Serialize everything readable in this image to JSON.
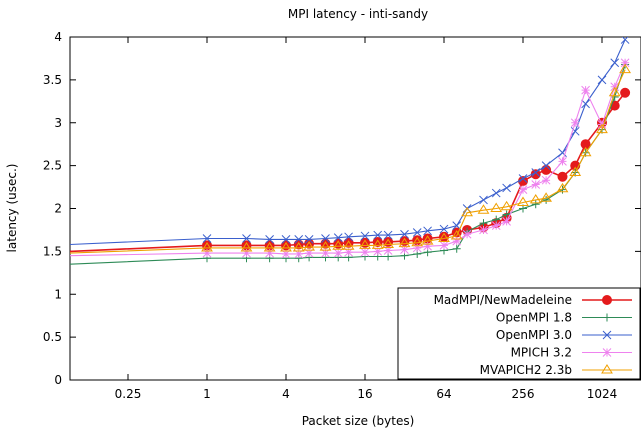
{
  "chart_data": {
    "type": "line",
    "title": "MPI latency - inti-sandy",
    "xlabel": "Packet size (bytes)",
    "ylabel": "latency (usec.)",
    "x_scale": "log2",
    "x_ticks": [
      0.25,
      1,
      4,
      16,
      64,
      256,
      1024
    ],
    "x_tick_labels": [
      "0.25",
      "1",
      "4",
      "16",
      "64",
      "256",
      "1024"
    ],
    "y_ticks": [
      0,
      0.5,
      1,
      1.5,
      2,
      2.5,
      3,
      3.5,
      4
    ],
    "y_tick_labels": [
      "0",
      "0.5",
      "1",
      "1.5",
      "2",
      "2.5",
      "3",
      "3.5",
      "4"
    ],
    "xlim": [
      0.09,
      2000
    ],
    "ylim": [
      0,
      4
    ],
    "grid": false,
    "legend_position": "bottom-right",
    "x": [
      1,
      2,
      3,
      4,
      5,
      6,
      8,
      10,
      12,
      16,
      20,
      24,
      32,
      40,
      48,
      64,
      80,
      96,
      128,
      160,
      192,
      256,
      320,
      384,
      512,
      640,
      768,
      1024,
      1280,
      1536
    ],
    "series": [
      {
        "name": "MadMPI/NewMadeleine",
        "color": "#e41a1c",
        "marker": "circle",
        "y0": 1.5,
        "values": [
          1.57,
          1.57,
          1.57,
          1.57,
          1.58,
          1.59,
          1.59,
          1.59,
          1.6,
          1.6,
          1.61,
          1.61,
          1.62,
          1.63,
          1.65,
          1.67,
          1.72,
          1.75,
          1.78,
          1.83,
          1.89,
          2.32,
          2.4,
          2.45,
          2.37,
          2.5,
          2.75,
          3.0,
          3.2,
          3.35
        ]
      },
      {
        "name": "OpenMPI 1.8",
        "color": "#2e8b57",
        "marker": "plus",
        "y0": 1.35,
        "values": [
          1.42,
          1.42,
          1.42,
          1.42,
          1.42,
          1.43,
          1.43,
          1.43,
          1.43,
          1.44,
          1.44,
          1.44,
          1.45,
          1.47,
          1.49,
          1.51,
          1.53,
          1.73,
          1.83,
          1.87,
          1.93,
          2.0,
          2.05,
          2.1,
          2.22,
          2.42,
          2.65,
          2.92,
          3.3,
          3.68
        ]
      },
      {
        "name": "OpenMPI 3.0",
        "color": "#3a5fcd",
        "marker": "x",
        "y0": 1.58,
        "values": [
          1.65,
          1.65,
          1.64,
          1.64,
          1.64,
          1.64,
          1.65,
          1.66,
          1.67,
          1.68,
          1.69,
          1.69,
          1.7,
          1.72,
          1.74,
          1.76,
          1.8,
          2.0,
          2.1,
          2.18,
          2.24,
          2.35,
          2.42,
          2.5,
          2.65,
          2.9,
          3.22,
          3.5,
          3.7,
          3.97
        ]
      },
      {
        "name": "MPICH 3.2",
        "color": "#ee82ee",
        "marker": "star",
        "y0": 1.45,
        "values": [
          1.48,
          1.48,
          1.48,
          1.47,
          1.47,
          1.48,
          1.48,
          1.48,
          1.49,
          1.49,
          1.5,
          1.51,
          1.52,
          1.54,
          1.56,
          1.57,
          1.62,
          1.7,
          1.75,
          1.8,
          1.85,
          2.22,
          2.28,
          2.33,
          2.55,
          3.0,
          3.38,
          2.98,
          3.42,
          3.7
        ]
      },
      {
        "name": "MVAPICH2 2.3b",
        "color": "#f0a000",
        "marker": "triangle",
        "y0": 1.48,
        "values": [
          1.54,
          1.54,
          1.54,
          1.54,
          1.54,
          1.55,
          1.55,
          1.56,
          1.56,
          1.57,
          1.57,
          1.58,
          1.59,
          1.6,
          1.62,
          1.65,
          1.68,
          1.95,
          1.98,
          2.0,
          2.02,
          2.07,
          2.1,
          2.12,
          2.23,
          2.42,
          2.65,
          2.92,
          3.35,
          3.62
        ]
      }
    ]
  }
}
